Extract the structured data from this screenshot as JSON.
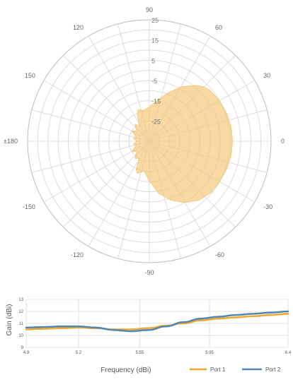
{
  "chart_data": [
    {
      "type": "polar-area",
      "angle_ticks": [
        "0",
        "30",
        "60",
        "90",
        "120",
        "150",
        "±180",
        "-150",
        "-120",
        "-90",
        "-60",
        "-30"
      ],
      "angle_tick_values": [
        0,
        30,
        60,
        90,
        120,
        150,
        180,
        -150,
        -120,
        -90,
        -60,
        -30
      ],
      "radial_ticks": [
        "25",
        "15",
        "5",
        "-5",
        "-15",
        "-25"
      ],
      "radial_tick_values": [
        25,
        15,
        5,
        -5,
        -15,
        -25
      ],
      "radial_range": [
        -35,
        25
      ],
      "grid": true,
      "series": [
        {
          "color": "#F5C97C",
          "theta": [
            0,
            10,
            20,
            30,
            40,
            45,
            50,
            60,
            70,
            80,
            90,
            100,
            110,
            115,
            120,
            125,
            130,
            140,
            150,
            160,
            170,
            180,
            -170,
            -160,
            -150,
            -140,
            -130,
            -120,
            -115,
            -110,
            -100,
            -90,
            -80,
            -70,
            -60,
            -50,
            -40,
            -30,
            -20,
            -10
          ],
          "r": [
            6,
            6,
            5.5,
            5,
            4,
            3,
            1,
            -4,
            -10,
            -15,
            -18,
            -19.5,
            -18.5,
            -21,
            -25,
            -26,
            -24,
            -27,
            -25,
            -28,
            -27,
            -29,
            -27,
            -28,
            -25,
            -27,
            -24,
            -25,
            -19.5,
            -18,
            -20,
            -15.5,
            -9,
            -4,
            0,
            3,
            4.5,
            5,
            5.5,
            6
          ]
        }
      ]
    },
    {
      "type": "line",
      "xlabel": "Frequency (dBi)",
      "ylabel": "Gain (dBi)",
      "xlim": [
        4.9,
        6.4
      ],
      "ylim": [
        9,
        13
      ],
      "x_ticks": [
        "4.9",
        "5.2",
        "5.55",
        "5.95",
        "6.4"
      ],
      "x_tick_values": [
        4.9,
        5.2,
        5.55,
        5.95,
        6.4
      ],
      "y_ticks": [
        "9",
        "10",
        "11",
        "12",
        "13"
      ],
      "y_tick_values": [
        9,
        10,
        11,
        12,
        13
      ],
      "grid": true,
      "legend": "bottom-right",
      "series": [
        {
          "name": "Port 1",
          "color": "#F0A830",
          "x": [
            4.9,
            5.0,
            5.1,
            5.2,
            5.3,
            5.4,
            5.5,
            5.6,
            5.7,
            5.8,
            5.9,
            6.0,
            6.1,
            6.2,
            6.3,
            6.4
          ],
          "y": [
            10.5,
            10.55,
            10.6,
            10.65,
            10.6,
            10.5,
            10.5,
            10.6,
            10.8,
            11.0,
            11.25,
            11.4,
            11.5,
            11.6,
            11.7,
            11.8
          ]
        },
        {
          "name": "Port 2",
          "color": "#4F87B5",
          "x": [
            4.9,
            5.0,
            5.1,
            5.2,
            5.3,
            5.4,
            5.5,
            5.6,
            5.7,
            5.8,
            5.9,
            6.0,
            6.1,
            6.2,
            6.3,
            6.4
          ],
          "y": [
            10.65,
            10.7,
            10.75,
            10.75,
            10.65,
            10.45,
            10.35,
            10.45,
            10.75,
            11.1,
            11.4,
            11.55,
            11.7,
            11.8,
            11.9,
            12.0
          ]
        }
      ]
    }
  ]
}
